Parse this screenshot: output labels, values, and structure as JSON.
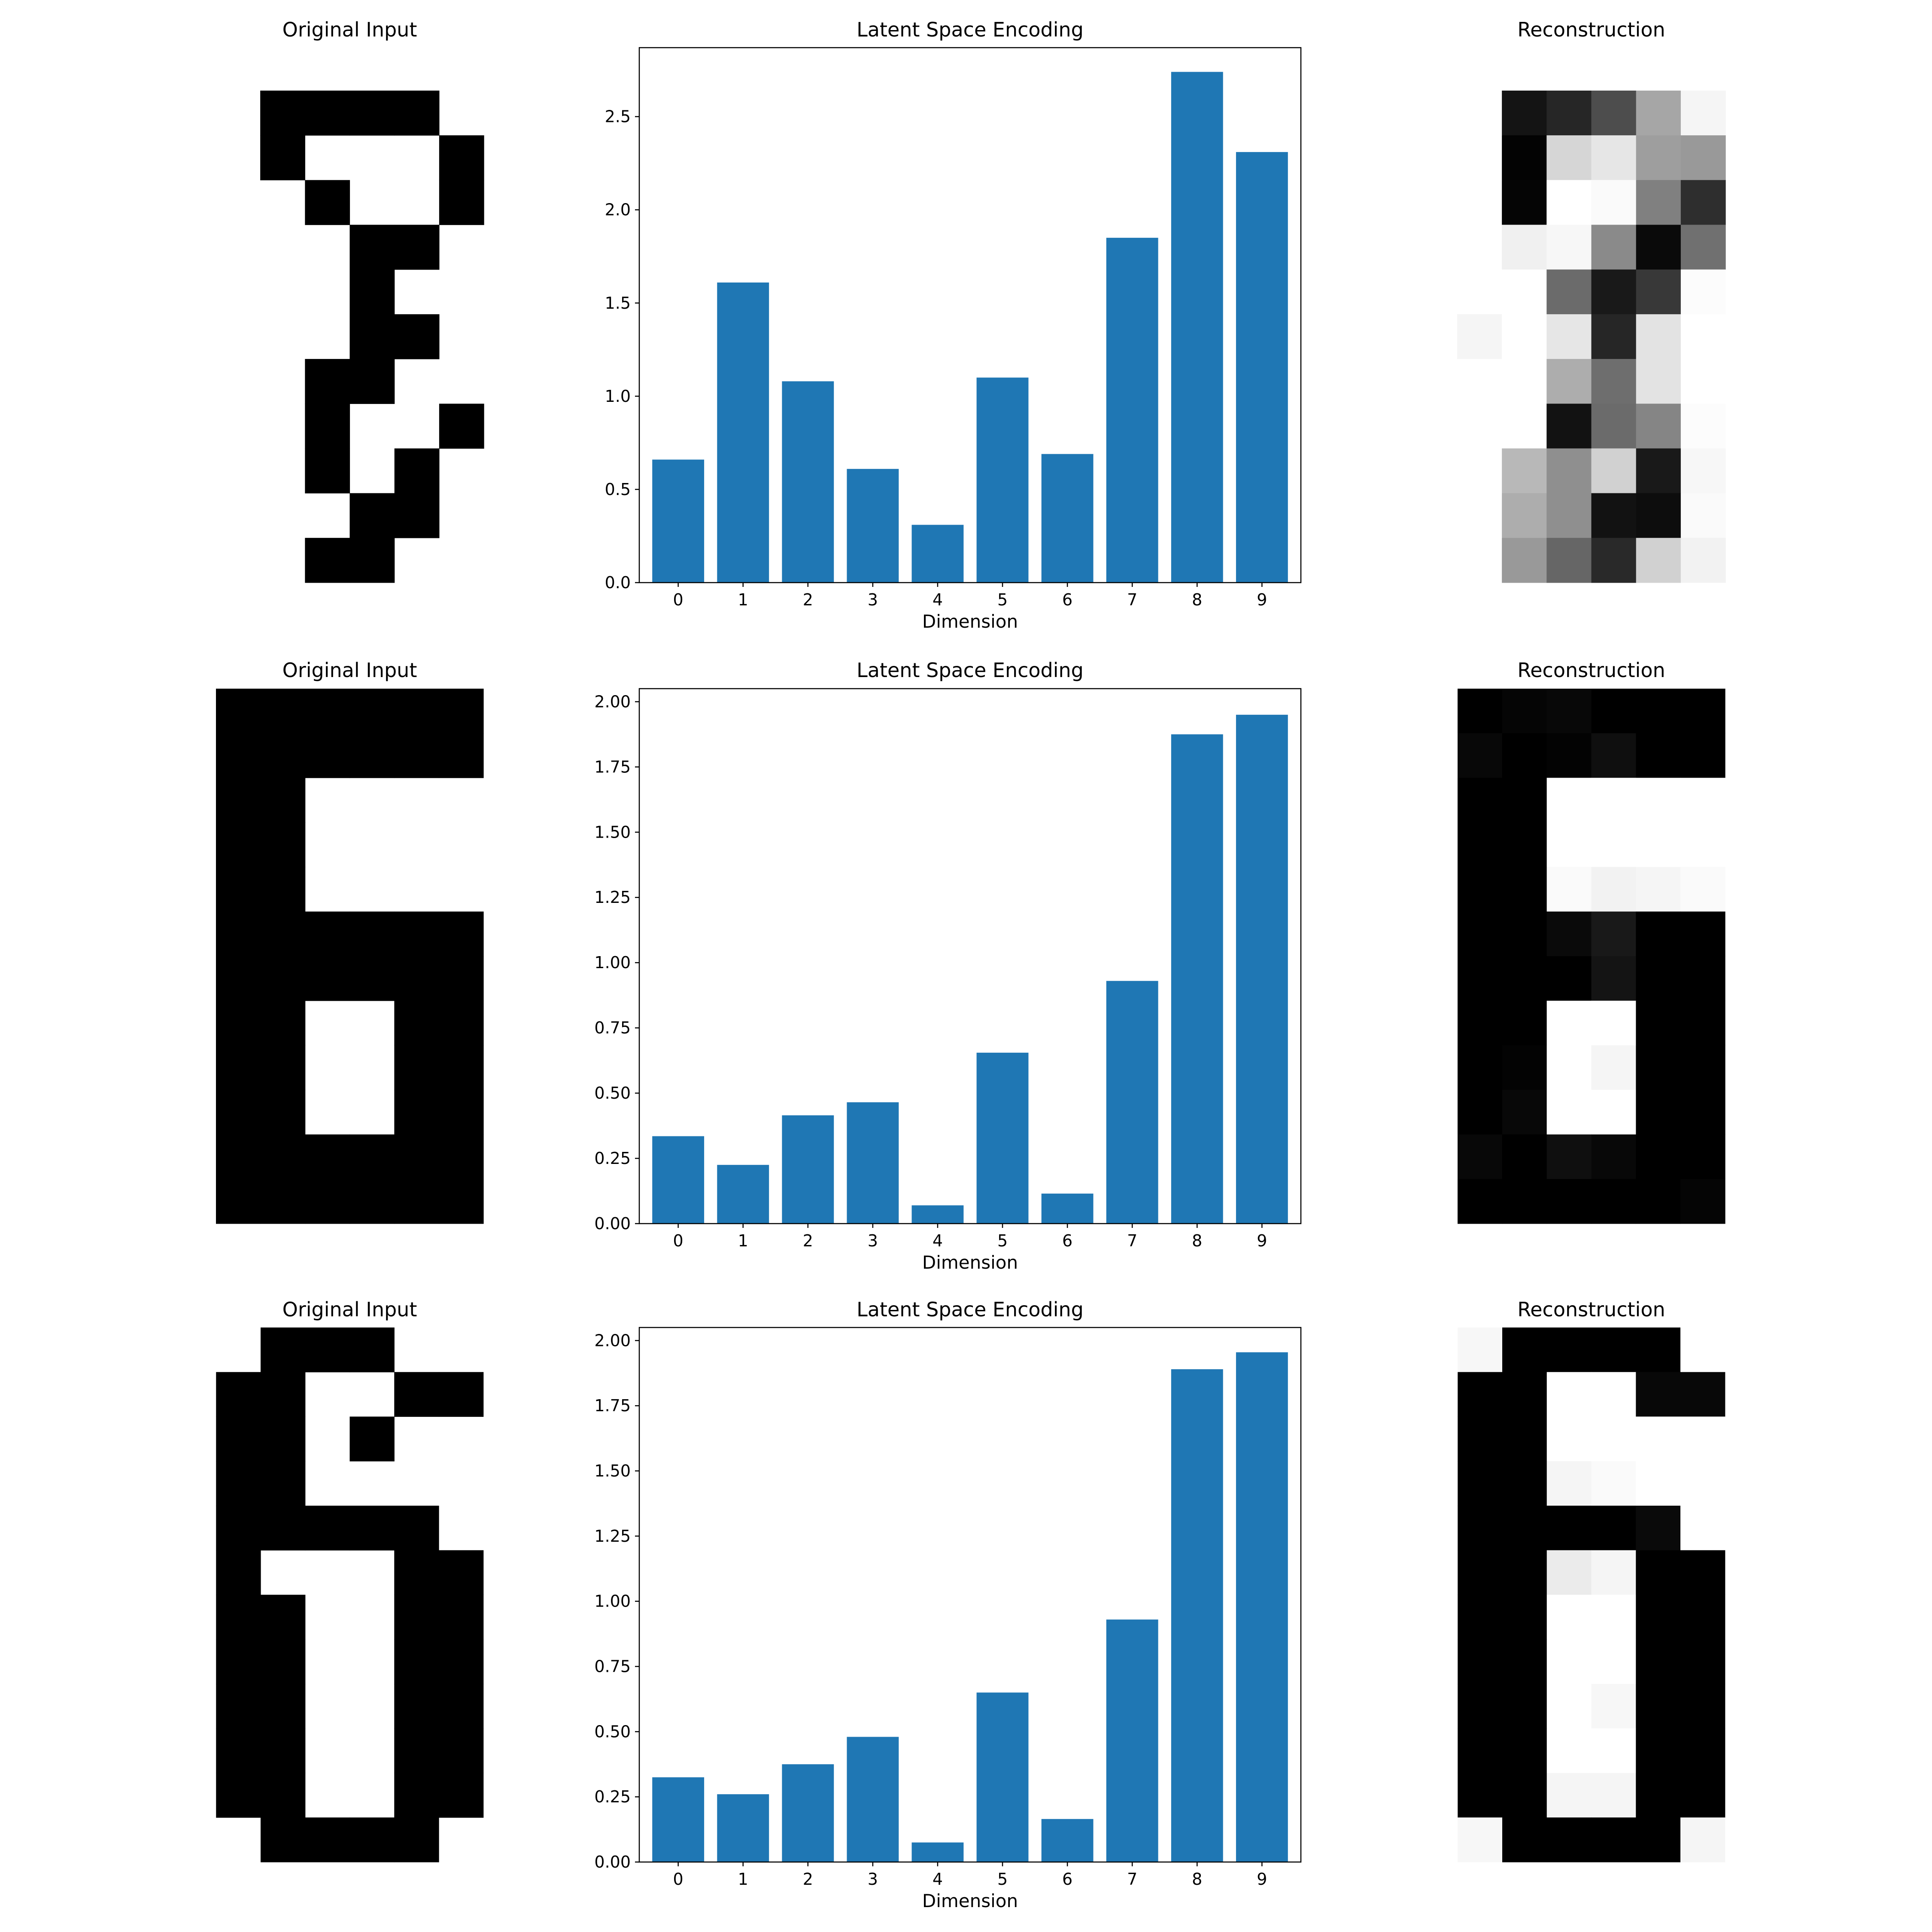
{
  "figure": {
    "rows": [
      {
        "original": {
          "title": "Original Input",
          "pixels": [
            [
              0,
              1,
              1,
              1,
              1,
              0
            ],
            [
              0,
              1,
              0,
              0,
              0,
              1
            ],
            [
              0,
              0,
              1,
              0,
              0,
              1
            ],
            [
              0,
              0,
              0,
              1,
              1,
              0
            ],
            [
              0,
              0,
              0,
              1,
              0,
              0
            ],
            [
              0,
              0,
              0,
              1,
              1,
              0
            ],
            [
              0,
              0,
              1,
              1,
              0,
              0
            ],
            [
              0,
              0,
              1,
              0,
              0,
              1
            ],
            [
              0,
              0,
              1,
              0,
              1,
              0
            ],
            [
              0,
              0,
              0,
              1,
              1,
              0
            ],
            [
              0,
              0,
              1,
              1,
              0,
              0
            ]
          ]
        },
        "latent": {
          "chart_data": {
            "type": "bar",
            "title": "Latent Space Encoding",
            "xlabel": "Dimension",
            "ylabel": "",
            "categories": [
              "0",
              "1",
              "2",
              "3",
              "4",
              "5",
              "6",
              "7",
              "8",
              "9"
            ],
            "values": [
              0.66,
              1.61,
              1.08,
              0.61,
              0.31,
              1.1,
              0.69,
              1.85,
              2.74,
              2.31
            ],
            "ylim": [
              0,
              2.87
            ],
            "yticks": [
              0.0,
              0.5,
              1.0,
              1.5,
              2.0,
              2.5
            ],
            "ytick_labels": [
              "0.0",
              "0.5",
              "1.0",
              "1.5",
              "2.0",
              "2.5"
            ],
            "bar_color": "#1f77b4",
            "grid": false
          }
        },
        "reconstruction": {
          "title": "Reconstruction",
          "pixels": [
            [
              0.0,
              0.92,
              0.85,
              0.7,
              0.35,
              0.04
            ],
            [
              0.0,
              0.99,
              0.16,
              0.1,
              0.38,
              0.4
            ],
            [
              0.0,
              0.98,
              0.0,
              0.02,
              0.5,
              0.82
            ],
            [
              0.0,
              0.06,
              0.03,
              0.46,
              0.96,
              0.56
            ],
            [
              0.0,
              0.0,
              0.58,
              0.9,
              0.78,
              0.01
            ],
            [
              0.04,
              0.0,
              0.1,
              0.85,
              0.11,
              0.0
            ],
            [
              0.0,
              0.0,
              0.32,
              0.57,
              0.11,
              0.0
            ],
            [
              0.0,
              0.0,
              0.93,
              0.58,
              0.48,
              0.01
            ],
            [
              0.0,
              0.28,
              0.44,
              0.18,
              0.9,
              0.03
            ],
            [
              0.0,
              0.32,
              0.44,
              0.93,
              0.95,
              0.02
            ],
            [
              0.0,
              0.4,
              0.6,
              0.84,
              0.18,
              0.05
            ]
          ]
        }
      },
      {
        "original": {
          "title": "Original Input",
          "pixels": [
            [
              1,
              1,
              1,
              1,
              1,
              1
            ],
            [
              1,
              1,
              1,
              1,
              1,
              1
            ],
            [
              1,
              1,
              0,
              0,
              0,
              0
            ],
            [
              1,
              1,
              0,
              0,
              0,
              0
            ],
            [
              1,
              1,
              0,
              0,
              0,
              0
            ],
            [
              1,
              1,
              1,
              1,
              1,
              1
            ],
            [
              1,
              1,
              1,
              1,
              1,
              1
            ],
            [
              1,
              1,
              0,
              0,
              1,
              1
            ],
            [
              1,
              1,
              0,
              0,
              1,
              1
            ],
            [
              1,
              1,
              0,
              0,
              1,
              1
            ],
            [
              1,
              1,
              1,
              1,
              1,
              1
            ],
            [
              1,
              1,
              1,
              1,
              1,
              1
            ]
          ]
        },
        "latent": {
          "chart_data": {
            "type": "bar",
            "title": "Latent Space Encoding",
            "xlabel": "Dimension",
            "ylabel": "",
            "categories": [
              "0",
              "1",
              "2",
              "3",
              "4",
              "5",
              "6",
              "7",
              "8",
              "9"
            ],
            "values": [
              0.335,
              0.225,
              0.415,
              0.465,
              0.07,
              0.655,
              0.115,
              0.93,
              1.875,
              1.95
            ],
            "ylim": [
              0,
              2.05
            ],
            "yticks": [
              0.0,
              0.25,
              0.5,
              0.75,
              1.0,
              1.25,
              1.5,
              1.75,
              2.0
            ],
            "ytick_labels": [
              "0.00",
              "0.25",
              "0.50",
              "0.75",
              "1.00",
              "1.25",
              "1.50",
              "1.75",
              "2.00"
            ],
            "bar_color": "#1f77b4",
            "grid": false
          }
        },
        "reconstruction": {
          "title": "Reconstruction",
          "pixels": [
            [
              1.0,
              0.98,
              0.97,
              1.0,
              1.0,
              1.0
            ],
            [
              0.97,
              1.0,
              0.99,
              0.94,
              1.0,
              1.0
            ],
            [
              1.0,
              1.0,
              0.0,
              0.0,
              0.0,
              0.0
            ],
            [
              1.0,
              1.0,
              0.0,
              0.0,
              0.0,
              0.0
            ],
            [
              1.0,
              1.0,
              0.02,
              0.05,
              0.04,
              0.02
            ],
            [
              1.0,
              1.0,
              0.96,
              0.9,
              1.0,
              1.0
            ],
            [
              1.0,
              1.0,
              1.0,
              0.92,
              1.0,
              1.0
            ],
            [
              1.0,
              1.0,
              0.0,
              0.0,
              1.0,
              1.0
            ],
            [
              1.0,
              0.99,
              0.0,
              0.04,
              1.0,
              1.0
            ],
            [
              1.0,
              0.97,
              0.0,
              0.0,
              1.0,
              1.0
            ],
            [
              0.97,
              1.0,
              0.94,
              0.97,
              1.0,
              1.0
            ],
            [
              1.0,
              1.0,
              1.0,
              1.0,
              1.0,
              0.98
            ]
          ]
        }
      },
      {
        "original": {
          "title": "Original Input",
          "pixels": [
            [
              0,
              1,
              1,
              1,
              0,
              0
            ],
            [
              1,
              1,
              0,
              0,
              1,
              1
            ],
            [
              1,
              1,
              0,
              1,
              0,
              0
            ],
            [
              1,
              1,
              0,
              0,
              0,
              0
            ],
            [
              1,
              1,
              1,
              1,
              1,
              0
            ],
            [
              1,
              0,
              0,
              0,
              1,
              1
            ],
            [
              1,
              1,
              0,
              0,
              1,
              1
            ],
            [
              1,
              1,
              0,
              0,
              1,
              1
            ],
            [
              1,
              1,
              0,
              0,
              1,
              1
            ],
            [
              1,
              1,
              0,
              0,
              1,
              1
            ],
            [
              1,
              1,
              0,
              0,
              1,
              1
            ],
            [
              0,
              1,
              1,
              1,
              1,
              0
            ]
          ]
        },
        "latent": {
          "chart_data": {
            "type": "bar",
            "title": "Latent Space Encoding",
            "xlabel": "Dimension",
            "ylabel": "",
            "categories": [
              "0",
              "1",
              "2",
              "3",
              "4",
              "5",
              "6",
              "7",
              "8",
              "9"
            ],
            "values": [
              0.325,
              0.26,
              0.375,
              0.48,
              0.075,
              0.65,
              0.165,
              0.93,
              1.89,
              1.955
            ],
            "ylim": [
              0,
              2.05
            ],
            "yticks": [
              0.0,
              0.25,
              0.5,
              0.75,
              1.0,
              1.25,
              1.5,
              1.75,
              2.0
            ],
            "ytick_labels": [
              "0.00",
              "0.25",
              "0.50",
              "0.75",
              "1.00",
              "1.25",
              "1.50",
              "1.75",
              "2.00"
            ],
            "bar_color": "#1f77b4",
            "grid": false
          }
        },
        "reconstruction": {
          "title": "Reconstruction",
          "pixels": [
            [
              0.03,
              1.0,
              1.0,
              1.0,
              1.0,
              0.0
            ],
            [
              1.0,
              1.0,
              0.0,
              0.0,
              0.97,
              0.97
            ],
            [
              1.0,
              1.0,
              0.0,
              0.0,
              0.0,
              0.0
            ],
            [
              1.0,
              1.0,
              0.04,
              0.02,
              0.0,
              0.0
            ],
            [
              1.0,
              1.0,
              1.0,
              1.0,
              0.96,
              0.0
            ],
            [
              1.0,
              1.0,
              0.08,
              0.04,
              1.0,
              1.0
            ],
            [
              1.0,
              1.0,
              0.0,
              0.0,
              1.0,
              1.0
            ],
            [
              1.0,
              1.0,
              0.0,
              0.0,
              1.0,
              1.0
            ],
            [
              1.0,
              1.0,
              0.0,
              0.03,
              1.0,
              1.0
            ],
            [
              1.0,
              1.0,
              0.0,
              0.0,
              1.0,
              1.0
            ],
            [
              1.0,
              1.0,
              0.04,
              0.04,
              1.0,
              1.0
            ],
            [
              0.03,
              1.0,
              1.0,
              1.0,
              1.0,
              0.04
            ]
          ]
        }
      }
    ]
  }
}
